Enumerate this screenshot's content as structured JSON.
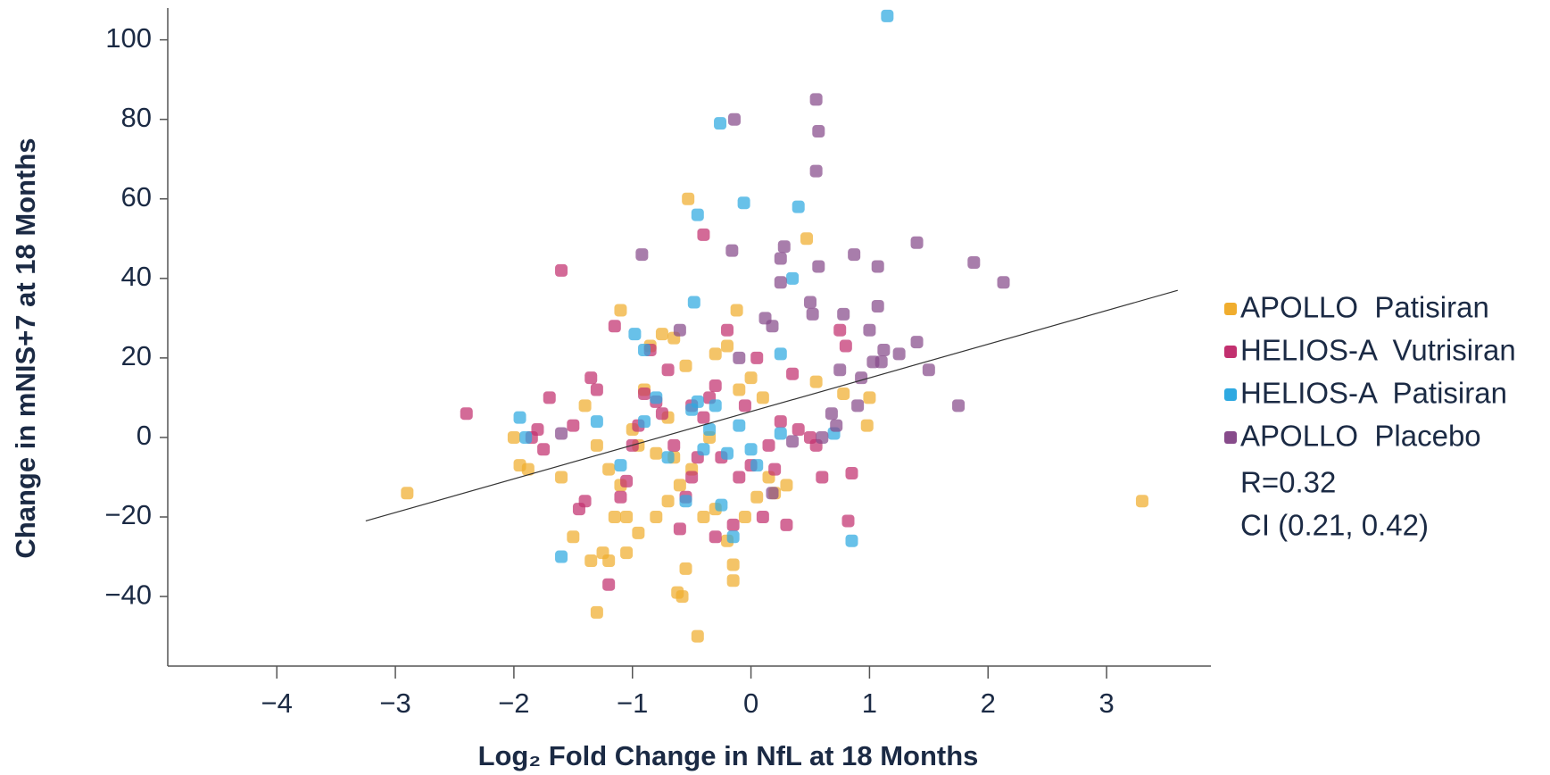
{
  "chart_data": {
    "type": "scatter",
    "xlabel": "Log₂ Fold Change in NfL at 18 Months",
    "ylabel": "Change in  mNIS+7 at 18 Months",
    "xlim": [
      -4.92,
      3.88
    ],
    "ylim": [
      -57.5,
      108
    ],
    "xticks": [
      {
        "value": -4,
        "label": "−4"
      },
      {
        "value": -3,
        "label": "−3"
      },
      {
        "value": -2,
        "label": "−2"
      },
      {
        "value": -1,
        "label": "−1"
      },
      0,
      1,
      2,
      3
    ],
    "yticks": [
      {
        "value": -40,
        "label": "−40"
      },
      {
        "value": -20,
        "label": "−20"
      },
      0,
      20,
      40,
      60,
      80,
      100
    ],
    "fit_line": {
      "x": [
        -3.25,
        3.6
      ],
      "y": [
        -21,
        37
      ]
    },
    "annotations": [
      "R=0.32",
      "CI (0.21, 0.42)"
    ],
    "series": [
      {
        "name": "APOLLO  Patisiran",
        "color": "#f0ad2e",
        "x": [
          -2.9,
          3.3,
          -0.53,
          0.47,
          -0.45,
          -0.58,
          -0.62,
          -1.3,
          -1.1,
          -0.12,
          -0.55,
          -0.15,
          -0.15,
          -1.5,
          -1.25,
          -1.05,
          -1.35,
          -1.2,
          -2.0,
          -1.95,
          -1.88,
          -1.6,
          -1.4,
          -1.3,
          -1.2,
          -1.15,
          -1.05,
          -0.95,
          -0.8,
          -0.7,
          -0.6,
          -0.5,
          -0.4,
          -0.3,
          -0.2,
          -0.05,
          0.05,
          0.2,
          0.3,
          -0.85,
          -0.75,
          -0.65,
          -0.55,
          -0.3,
          -0.2,
          -0.1,
          -0.9,
          -1.0,
          -0.95,
          0.55,
          1.0,
          0.98,
          0.78,
          0.1,
          0.0,
          -0.7,
          -0.8,
          -0.35,
          0.15,
          -1.1,
          -0.65
        ],
        "y": [
          -14,
          -16,
          60,
          50,
          -50,
          -40,
          -39,
          -44,
          32,
          32,
          -33,
          -36,
          -32,
          -25,
          -29,
          -29,
          -31,
          -31,
          0,
          -7,
          -8,
          -10,
          8,
          -2,
          -8,
          -20,
          -20,
          -24,
          -20,
          -16,
          -12,
          -8,
          -20,
          -18,
          -26,
          -20,
          -15,
          -14,
          -12,
          23,
          26,
          25,
          18,
          21,
          23,
          12,
          12,
          2,
          -2,
          14,
          10,
          3,
          11,
          10,
          15,
          5,
          -4,
          0,
          -10,
          -12,
          -5
        ]
      },
      {
        "name": "HELIOS-A  Vutrisiran",
        "color": "#c2306f",
        "x": [
          -2.4,
          -1.6,
          -0.4,
          -1.15,
          -0.9,
          -1.7,
          -1.8,
          -1.85,
          -1.75,
          -1.5,
          -1.35,
          -1.3,
          -1.4,
          -1.45,
          -1.2,
          -1.1,
          -1.05,
          -1.0,
          -0.95,
          -0.85,
          -0.8,
          -0.75,
          -0.7,
          -0.6,
          -0.55,
          -0.5,
          -0.45,
          -0.4,
          -0.35,
          -0.3,
          -0.25,
          -0.2,
          -0.15,
          -0.1,
          0.0,
          0.05,
          0.1,
          0.15,
          0.2,
          0.25,
          0.3,
          0.35,
          0.4,
          0.5,
          0.55,
          0.75,
          0.8,
          0.82,
          0.85,
          0.6,
          -0.65,
          -0.5,
          -0.3,
          -0.05
        ],
        "y": [
          6,
          42,
          51,
          28,
          11,
          10,
          2,
          0,
          -3,
          3,
          15,
          12,
          -16,
          -18,
          -37,
          -15,
          -11,
          -2,
          3,
          22,
          9,
          6,
          17,
          -23,
          -15,
          -10,
          -5,
          5,
          10,
          13,
          -5,
          27,
          -22,
          -10,
          -7,
          20,
          -20,
          -2,
          -8,
          4,
          -22,
          16,
          2,
          0,
          -2,
          27,
          23,
          -21,
          -9,
          -10,
          -2,
          8,
          -25,
          8
        ]
      },
      {
        "name": "HELIOS-A  Patisiran",
        "color": "#2ea9e1",
        "x": [
          1.15,
          -0.26,
          -0.06,
          -0.45,
          0.4,
          -0.48,
          0.35,
          -0.98,
          -0.9,
          0.25,
          -1.95,
          -1.9,
          -1.6,
          -1.1,
          -0.8,
          -0.7,
          -0.55,
          -0.5,
          -0.45,
          -0.4,
          -0.3,
          -0.35,
          -0.2,
          -0.15,
          -0.1,
          0.0,
          0.05,
          -0.25,
          0.85,
          0.7,
          0.25,
          -0.9,
          -1.3
        ],
        "y": [
          106,
          79,
          59,
          56,
          58,
          34,
          40,
          26,
          22,
          21,
          5,
          0,
          -30,
          -7,
          10,
          -5,
          -16,
          7,
          9,
          -3,
          8,
          2,
          -4,
          -25,
          3,
          -3,
          -7,
          -17,
          -26,
          1,
          1,
          4,
          4
        ]
      },
      {
        "name": "APOLLO  Placebo",
        "color": "#874b8b",
        "x": [
          0.55,
          0.57,
          -0.14,
          0.55,
          1.4,
          1.88,
          2.13,
          0.87,
          1.07,
          -0.92,
          -0.16,
          0.57,
          0.28,
          0.25,
          0.25,
          0.5,
          0.52,
          0.78,
          1.07,
          1.0,
          0.12,
          0.18,
          1.4,
          1.12,
          1.25,
          1.1,
          1.03,
          1.5,
          0.75,
          0.93,
          1.75,
          0.9,
          0.68,
          0.72,
          0.6,
          0.35,
          0.18,
          -0.6,
          -1.6,
          -0.1
        ],
        "y": [
          85,
          77,
          80,
          67,
          49,
          44,
          39,
          46,
          43,
          46,
          47,
          43,
          48,
          45,
          39,
          34,
          31,
          31,
          33,
          27,
          30,
          28,
          24,
          22,
          21,
          19,
          19,
          17,
          17,
          15,
          8,
          8,
          6,
          3,
          0,
          -1,
          -14,
          27,
          1,
          20
        ]
      }
    ]
  }
}
